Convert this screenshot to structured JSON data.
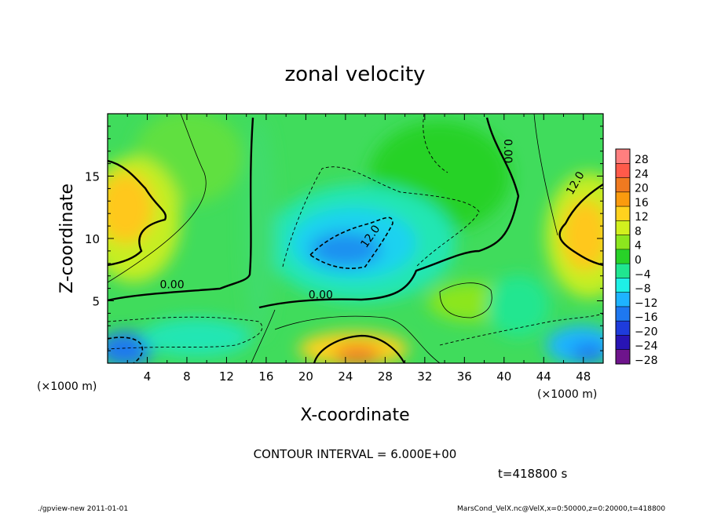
{
  "chart_data": {
    "type": "heatmap",
    "title": "zonal velocity",
    "xlabel": "X-coordinate",
    "ylabel": "Z-coordinate",
    "x_unit": "(×1000 m)",
    "y_unit": "(×1000 m)",
    "xlim": [
      0,
      50
    ],
    "ylim": [
      0,
      20
    ],
    "x_ticks": [
      "4",
      "8",
      "12",
      "16",
      "20",
      "24",
      "28",
      "32",
      "36",
      "40",
      "44",
      "48"
    ],
    "y_ticks": [
      "5",
      "10",
      "15"
    ],
    "colorbar": {
      "labels": [
        "28",
        "24",
        "20",
        "16",
        "12",
        "8",
        "4",
        "0",
        "−4",
        "−8",
        "−12",
        "−16",
        "−20",
        "−24",
        "−28"
      ],
      "colors": [
        "#ff7f7f",
        "#ff5a4a",
        "#f07a20",
        "#fa9b0e",
        "#ffd21e",
        "#d2f01e",
        "#8ce61e",
        "#28d228",
        "#20e690",
        "#1ef0e6",
        "#1eb4ff",
        "#1e78f0",
        "#1e3cdc",
        "#2814b4",
        "#6e148c"
      ]
    },
    "contour_labels": [
      {
        "text": "0.00",
        "x": 6.5,
        "z": 6.0
      },
      {
        "text": "0.00",
        "x": 21.5,
        "z": 5.2
      },
      {
        "text": "0.00",
        "x": 40,
        "z": 17
      },
      {
        "text": "12.0",
        "x": 26.8,
        "z": 10.0
      },
      {
        "text": "12.0",
        "x": 47.5,
        "z": 14.3
      }
    ],
    "contour_interval": "CONTOUR INTERVAL = 6.000E+00",
    "time": "t=418800 s",
    "footer_left": "./gpview-new  2011-01-01",
    "footer_right": "MarsCond_VelX.nc@VelX,x=0:50000,z=0:20000,t=418800"
  }
}
